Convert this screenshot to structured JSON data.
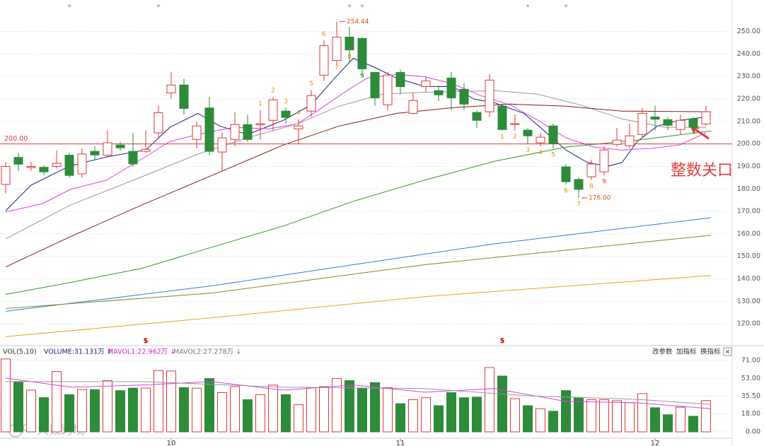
{
  "chart_data": {
    "type": "candlestick",
    "ylim": [
      110,
      264
    ],
    "yticks": [
      {
        "value": 120,
        "label": "120.00"
      },
      {
        "value": 130,
        "label": "130.00"
      },
      {
        "value": 140,
        "label": "140.00"
      },
      {
        "value": 150,
        "label": "150.00"
      },
      {
        "value": 160,
        "label": "160.00"
      },
      {
        "value": 170,
        "label": "170.00"
      },
      {
        "value": 180,
        "label": "180.00"
      },
      {
        "value": 190,
        "label": "190.00"
      },
      {
        "value": 200,
        "label": "200.00"
      },
      {
        "value": 210,
        "label": "210.00"
      },
      {
        "value": 220,
        "label": "220.00"
      },
      {
        "value": 230,
        "label": "230.00"
      },
      {
        "value": 240,
        "label": "240.00"
      },
      {
        "value": 250,
        "label": "250.00"
      }
    ],
    "grid": true,
    "up_color": "#e03a3a",
    "down_color": "#2e8b3a",
    "candles": [
      {
        "open": 182,
        "high": 192,
        "low": 178,
        "close": 190
      },
      {
        "open": 194,
        "high": 196,
        "low": 188,
        "close": 191
      },
      {
        "open": 189.5,
        "high": 192,
        "low": 188,
        "close": 190
      },
      {
        "open": 189.6,
        "high": 190.5,
        "low": 186,
        "close": 187.6
      },
      {
        "open": 190,
        "high": 197,
        "low": 189,
        "close": 191.4
      },
      {
        "open": 195,
        "high": 196,
        "low": 185,
        "close": 186
      },
      {
        "open": 186.7,
        "high": 198,
        "low": 185,
        "close": 195.5
      },
      {
        "open": 196.7,
        "high": 199,
        "low": 193,
        "close": 195.1
      },
      {
        "open": 195,
        "high": 206,
        "low": 194,
        "close": 200.5
      },
      {
        "open": 199.5,
        "high": 201,
        "low": 197,
        "close": 198.3
      },
      {
        "open": 196.7,
        "high": 205,
        "low": 190,
        "close": 191.1
      },
      {
        "open": 196.7,
        "high": 206,
        "low": 196,
        "close": 197.6
      },
      {
        "open": 204.9,
        "high": 217,
        "low": 203,
        "close": 213.9
      },
      {
        "open": 222.7,
        "high": 232,
        "low": 220,
        "close": 226.2
      },
      {
        "open": 226.2,
        "high": 229,
        "low": 213,
        "close": 215.8
      },
      {
        "open": 202,
        "high": 210,
        "low": 198,
        "close": 208
      },
      {
        "open": 216,
        "high": 221,
        "low": 195,
        "close": 196.7
      },
      {
        "open": 196.4,
        "high": 205,
        "low": 188,
        "close": 202.7
      },
      {
        "open": 202,
        "high": 214,
        "low": 199,
        "close": 208.6
      },
      {
        "open": 208.6,
        "high": 213,
        "low": 201,
        "close": 202
      },
      {
        "open": 208.5,
        "high": 215,
        "low": 202,
        "close": 209
      },
      {
        "open": 210.5,
        "high": 221,
        "low": 206,
        "close": 219.6
      },
      {
        "open": 214.6,
        "high": 216,
        "low": 209,
        "close": 211.8
      },
      {
        "open": 206.7,
        "high": 211,
        "low": 200,
        "close": 208
      },
      {
        "open": 214.6,
        "high": 224,
        "low": 212,
        "close": 221.5
      },
      {
        "open": 230.6,
        "high": 246,
        "low": 228,
        "close": 243.7
      },
      {
        "open": 237.1,
        "high": 254.44,
        "low": 235,
        "close": 247.5
      },
      {
        "open": 247.5,
        "high": 252,
        "low": 236,
        "close": 241.8
      },
      {
        "open": 246.9,
        "high": 247.5,
        "low": 230,
        "close": 233.4
      },
      {
        "open": 231.8,
        "high": 232,
        "low": 217,
        "close": 220.5
      },
      {
        "open": 217.4,
        "high": 232,
        "low": 215,
        "close": 230.6
      },
      {
        "open": 231.8,
        "high": 233,
        "low": 222,
        "close": 225.5
      },
      {
        "open": 213.6,
        "high": 223,
        "low": 213,
        "close": 219.3
      },
      {
        "open": 225.5,
        "high": 230,
        "low": 223,
        "close": 228
      },
      {
        "open": 223.7,
        "high": 226,
        "low": 219,
        "close": 221.8
      },
      {
        "open": 229.3,
        "high": 232,
        "low": 215,
        "close": 220.5
      },
      {
        "open": 224.3,
        "high": 227,
        "low": 215,
        "close": 217.7
      },
      {
        "open": 214,
        "high": 215,
        "low": 207,
        "close": 210.5
      },
      {
        "open": 214.3,
        "high": 231,
        "low": 212,
        "close": 228.4
      },
      {
        "open": 216.8,
        "high": 218,
        "low": 206,
        "close": 206.4
      },
      {
        "open": 208.7,
        "high": 213,
        "low": 206,
        "close": 209
      },
      {
        "open": 206.1,
        "high": 207,
        "low": 200,
        "close": 203.6
      },
      {
        "open": 200.5,
        "high": 205,
        "low": 199,
        "close": 203
      },
      {
        "open": 208,
        "high": 209,
        "low": 198,
        "close": 200.2
      },
      {
        "open": 189.8,
        "high": 191,
        "low": 182,
        "close": 183.2
      },
      {
        "open": 184.2,
        "high": 185,
        "low": 176,
        "close": 179.8
      },
      {
        "open": 185.4,
        "high": 193,
        "low": 184,
        "close": 191.1
      },
      {
        "open": 187.6,
        "high": 199,
        "low": 186,
        "close": 197.3
      },
      {
        "open": 199.8,
        "high": 207,
        "low": 199,
        "close": 201.7
      },
      {
        "open": 199.2,
        "high": 209,
        "low": 198,
        "close": 203.6
      },
      {
        "open": 204.2,
        "high": 216,
        "low": 203,
        "close": 213.6
      },
      {
        "open": 212,
        "high": 217,
        "low": 206,
        "close": 211
      },
      {
        "open": 210.8,
        "high": 212,
        "low": 206,
        "close": 208.3
      },
      {
        "open": 206.4,
        "high": 213,
        "low": 204,
        "close": 210.5
      },
      {
        "open": 211.1,
        "high": 212,
        "low": 206,
        "close": 207.4
      },
      {
        "open": 208.9,
        "high": 217,
        "low": 208,
        "close": 214.3
      }
    ],
    "ma_lines": [
      {
        "color": "#1a237e",
        "x": [
          0,
          2,
          5,
          7.9,
          11,
          12.9,
          15.1,
          16.8,
          19,
          21.8,
          24,
          25.7,
          27.3,
          29,
          30.7,
          32.9,
          35.1,
          36.8,
          38.4,
          40.7,
          42.3,
          44,
          45.7,
          47.3,
          48.4,
          49.6,
          51.2,
          52.9,
          55
        ],
        "values": [
          170.3,
          181.7,
          190.1,
          194.2,
          197.3,
          207.4,
          213.6,
          208,
          204.2,
          210.5,
          217.4,
          228.4,
          238.1,
          234,
          229.3,
          225.5,
          225.5,
          219.9,
          218.3,
          213.6,
          205.8,
          197.3,
          191.7,
          190.1,
          191.7,
          201.1,
          208,
          210.5,
          212
        ]
      },
      {
        "color": "#e040e0",
        "x": [
          0,
          2.9,
          5.1,
          7.9,
          10.7,
          12.9,
          15.1,
          17.9,
          20.7,
          22.9,
          24.6,
          26.8,
          28.4,
          30.7,
          32.9,
          35.1,
          37.3,
          39.6,
          41.8,
          44,
          46.2,
          48.4,
          50.7,
          52.9,
          55
        ],
        "values": [
          169.7,
          173.5,
          179.8,
          183.9,
          193.3,
          201.1,
          204.2,
          207.4,
          206.7,
          208.9,
          215.2,
          223.7,
          229.3,
          230.9,
          229.9,
          226.8,
          221.5,
          217.4,
          210.5,
          202.7,
          198.6,
          197.3,
          198,
          199.5,
          204.9
        ]
      },
      {
        "color": "#999999",
        "x": [
          0,
          5.1,
          10.7,
          15.1,
          19,
          22.9,
          26.2,
          29.6,
          32.9,
          38.4,
          41.8,
          45.1,
          48.4,
          51.8,
          55
        ],
        "values": [
          157.8,
          172.9,
          185.4,
          195.5,
          202.7,
          208.9,
          216.8,
          222.1,
          223,
          223.7,
          222.1,
          217.4,
          211.1,
          207.4,
          207.4
        ]
      },
      {
        "color": "#8b1a1a",
        "x": [
          0,
          5.1,
          10.7,
          16.2,
          21.8,
          26.2,
          30.7,
          35.1,
          39.6,
          44,
          48.4,
          55.4
        ],
        "values": [
          145.3,
          158.8,
          172.9,
          186,
          199.5,
          208,
          213.6,
          216.1,
          217.7,
          216.8,
          214.6,
          214.3
        ]
      },
      {
        "color": "#2e9a2e",
        "x": [
          0,
          5.1,
          10.7,
          16.2,
          21.8,
          27.3,
          32.9,
          38.4,
          44,
          49.6,
          55.4
        ],
        "values": [
          133.1,
          138.4,
          144.7,
          154.1,
          163.5,
          174.5,
          183.9,
          192.3,
          198.6,
          201.7,
          205.8
        ]
      },
      {
        "color": "#2a7fd4",
        "x": [
          0,
          16.2,
          27.3,
          38.4,
          55.4
        ],
        "values": [
          125.6,
          136.9,
          146.3,
          155.6,
          167.2
        ]
      },
      {
        "color": "#8a8a20",
        "x": [
          0,
          16.2,
          32.9,
          55.4
        ],
        "values": [
          126.8,
          133.7,
          146.3,
          159.4
        ]
      },
      {
        "color": "#f0a020",
        "x": [
          0,
          16.2,
          32.9,
          55.4
        ],
        "values": [
          114.3,
          122.7,
          132.1,
          141.5
        ]
      }
    ],
    "ref_line": {
      "value": 200,
      "label": "200.00",
      "color": "#e03a3a"
    },
    "high_label": {
      "index": 26,
      "value": 254.44,
      "label": "254.44"
    },
    "low_label": {
      "index": 45,
      "value": 176,
      "label": "176.00"
    },
    "callout": "整数关口",
    "td_sell": [
      {
        "index": 20,
        "label": "1",
        "color": "#f08c00"
      },
      {
        "index": 21,
        "label": "2",
        "color": "#f08c00"
      },
      {
        "index": 22,
        "label": "3",
        "color": "#f08c00"
      },
      {
        "index": 23,
        "label": "4",
        "color": "#f08c00"
      },
      {
        "index": 24,
        "label": "5",
        "color": "#f08c00"
      },
      {
        "index": 25,
        "label": "6",
        "color": "#f08c00"
      },
      {
        "index": 26,
        "label": "7",
        "color": "#f08c00"
      },
      {
        "index": 27,
        "label": "8",
        "color": "#f08c00"
      },
      {
        "index": 28,
        "label": "9",
        "color": "#2e9a2e"
      }
    ],
    "td_buy": [
      {
        "index": 39,
        "label": "1",
        "color": "#f08c00"
      },
      {
        "index": 40,
        "label": "2",
        "color": "#f08c00"
      },
      {
        "index": 41,
        "label": "3",
        "color": "#f08c00"
      },
      {
        "index": 42,
        "label": "4",
        "color": "#f08c00"
      },
      {
        "index": 43,
        "label": "5",
        "color": "#f08c00"
      },
      {
        "index": 44,
        "label": "6",
        "color": "#f08c00"
      },
      {
        "index": 45,
        "label": "7",
        "color": "#f08c00"
      },
      {
        "index": 46,
        "label": "8",
        "color": "#f08c00"
      },
      {
        "index": 47,
        "label": "9",
        "color": "#e03a3a"
      }
    ],
    "top_markers": [
      {
        "index": 5,
        "label": "*"
      },
      {
        "index": 12,
        "label": "*"
      },
      {
        "index": 27,
        "label": "*"
      },
      {
        "index": 28,
        "label": "*"
      },
      {
        "index": 41,
        "label": "*"
      },
      {
        "index": 44,
        "label": "*"
      }
    ],
    "bottom_markers": [
      {
        "index": 11,
        "label": "$"
      },
      {
        "index": 39,
        "label": "$"
      }
    ],
    "months": [
      {
        "index": 13,
        "label": "10"
      },
      {
        "index": 31,
        "label": "11"
      },
      {
        "index": 51,
        "label": "12"
      }
    ],
    "volume": {
      "title": "VOL(5,10)",
      "volume_label": "VOLUME:31.131万 ↑",
      "mavol1_label": "MAVOL1:22.962万 ↓",
      "mavol2_label": "MAVOL2:27.278万 ↓",
      "ylim": [
        0,
        74.5
      ],
      "yticks": [
        {
          "value": 0,
          "label": "0.00"
        },
        {
          "value": 18,
          "label": "18.00"
        },
        {
          "value": 35.5,
          "label": "35.50"
        },
        {
          "value": 53,
          "label": "53.00"
        },
        {
          "value": 71,
          "label": "71.00"
        }
      ],
      "values": [
        72.5,
        50,
        41.5,
        34,
        60,
        37,
        42,
        42,
        51,
        41,
        43.5,
        43.5,
        61,
        60.5,
        44,
        43.5,
        53,
        39,
        45,
        32,
        37,
        46.5,
        37,
        27,
        44,
        45,
        53,
        51,
        43.5,
        49,
        44,
        28,
        32,
        34,
        26,
        39,
        34,
        34.5,
        64,
        55.5,
        33,
        26,
        23,
        20.5,
        41,
        34,
        32,
        32,
        31,
        29,
        38,
        24,
        17,
        24.5,
        15.5,
        31.131
      ],
      "ma_lines": [
        {
          "color": "#e040e0",
          "x": [
            0,
            5.1,
            10.7,
            16.2,
            21.8,
            27.3,
            32.9,
            38.4,
            44,
            49.6,
            55.4
          ],
          "values": [
            53.5,
            44.4,
            46.5,
            50,
            41.5,
            46.5,
            39.4,
            43,
            30.3,
            28.9,
            22.962
          ]
        },
        {
          "color": "#999999",
          "x": [
            0,
            10.7,
            21.8,
            32.9,
            41.2,
            49.6,
            55.4
          ],
          "values": [
            50,
            50,
            44.4,
            43,
            35.8,
            32.3,
            27.278
          ]
        }
      ]
    },
    "buttons": [
      "改参数",
      "加指标",
      "换指标",
      "×"
    ],
    "watermark": "大数跨境"
  }
}
